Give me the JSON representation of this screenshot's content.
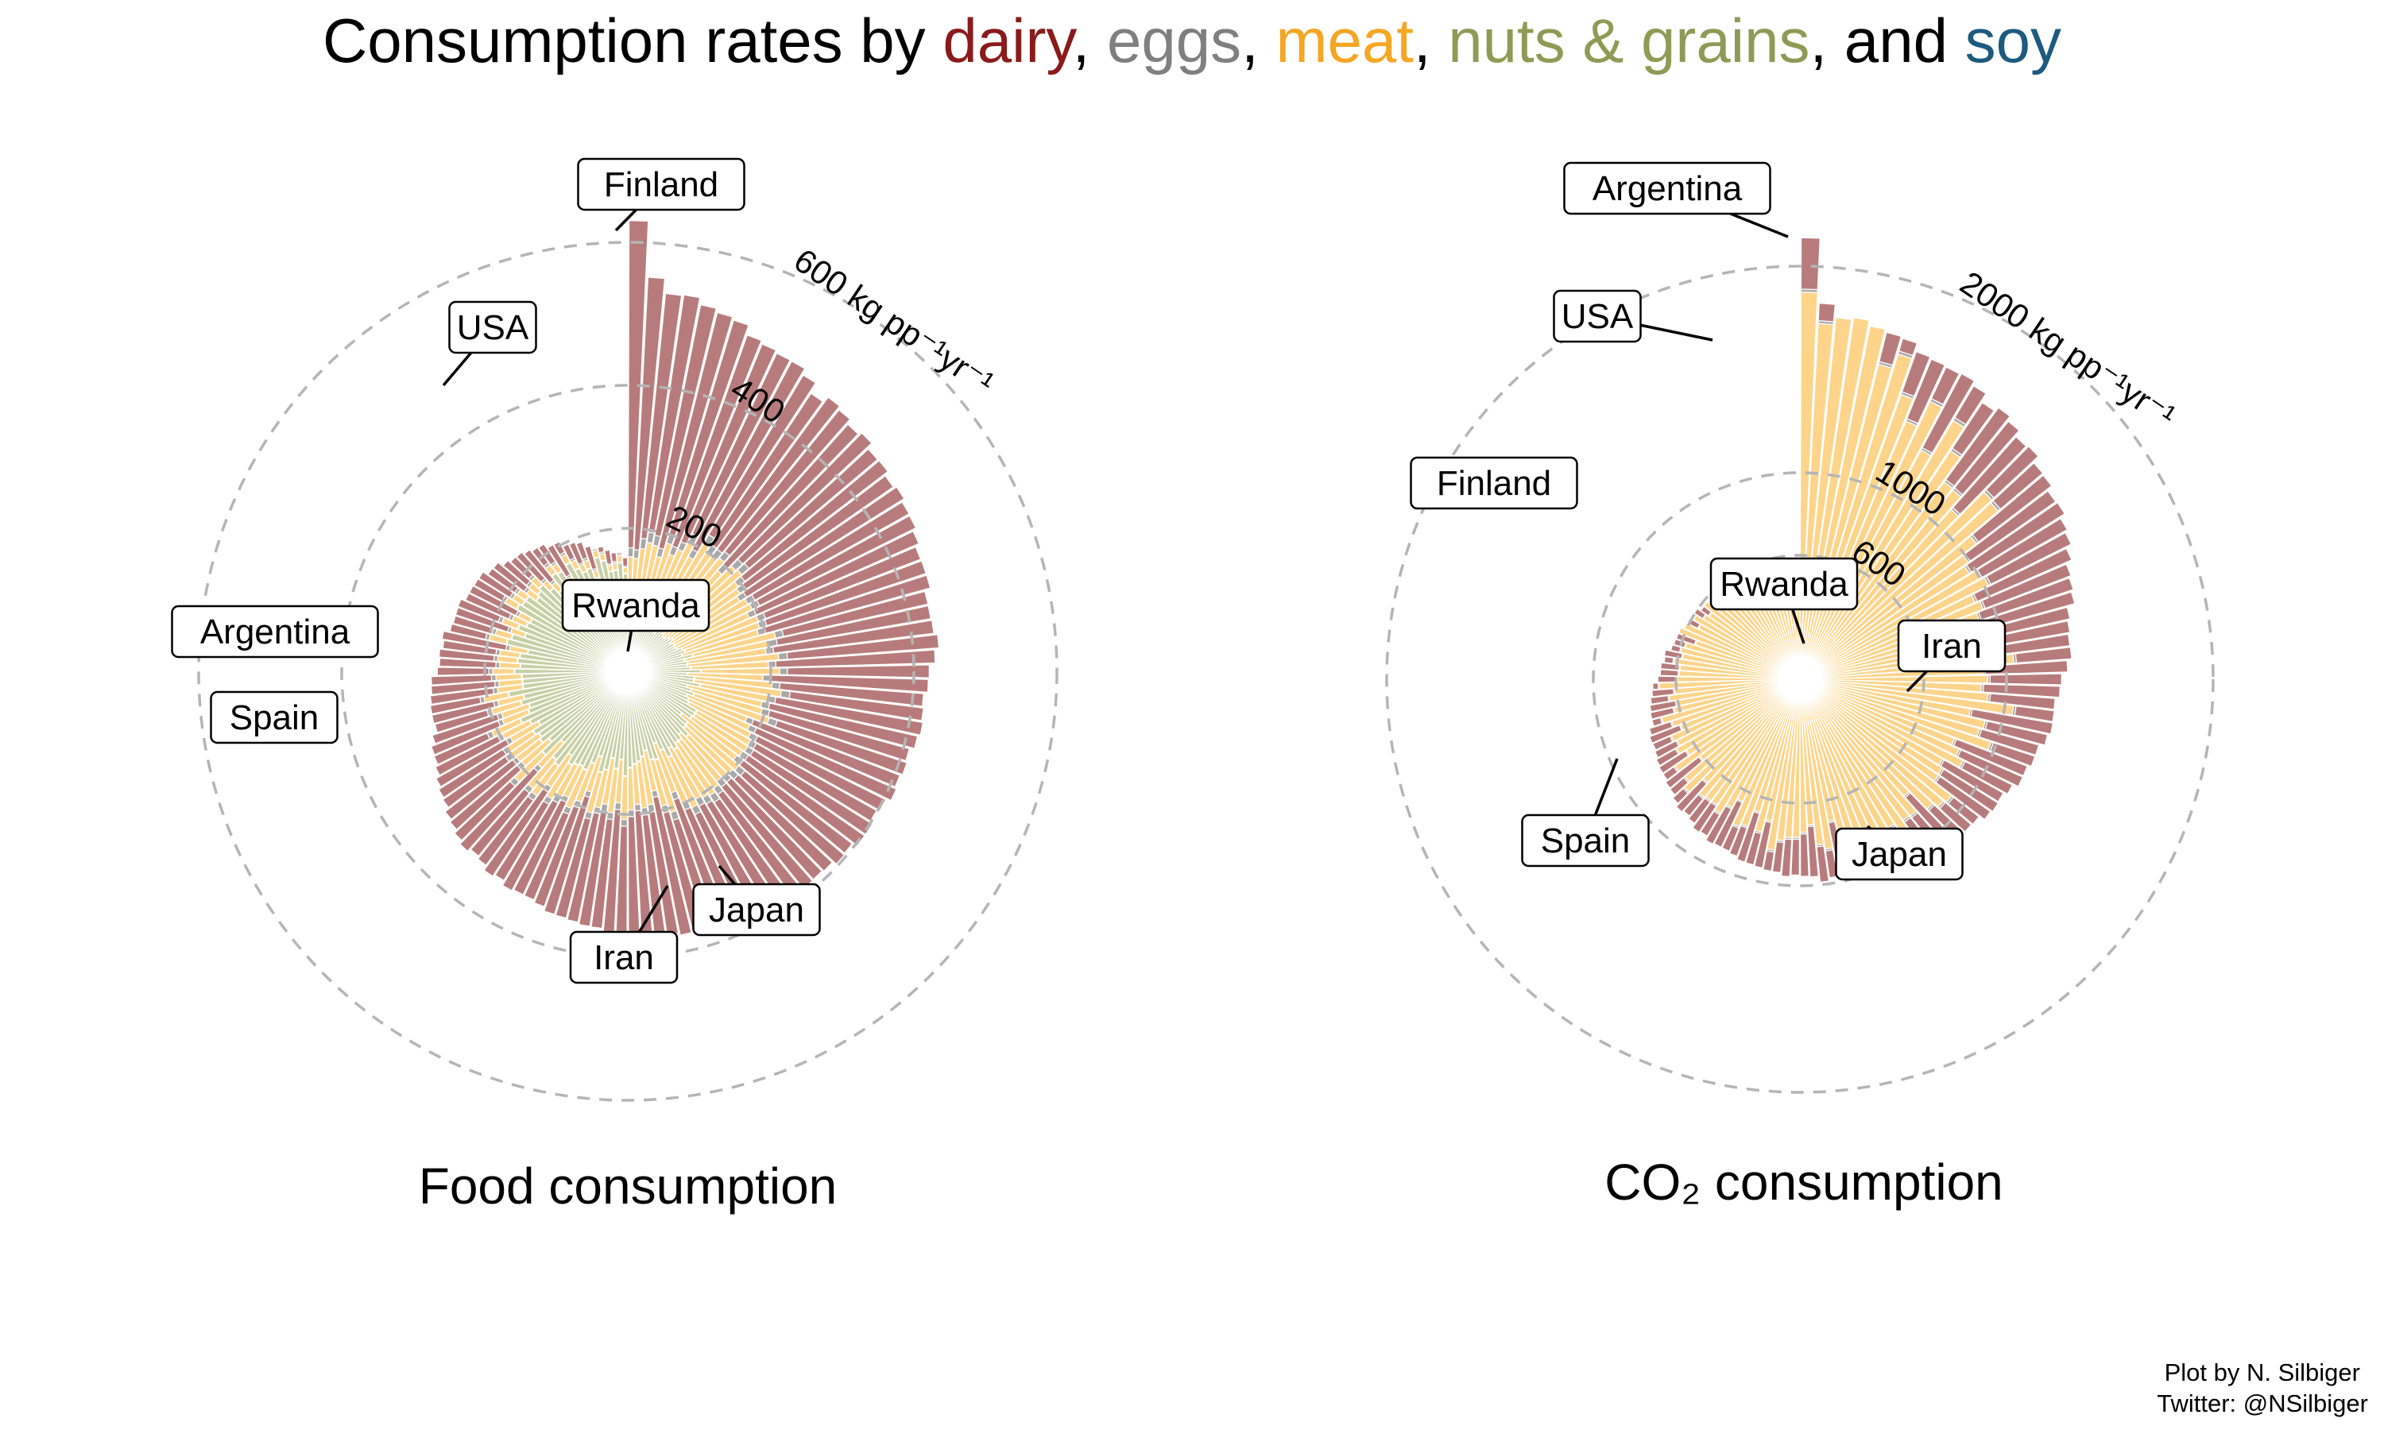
{
  "title": {
    "prefix": "Consumption rates by ",
    "dairy": "dairy",
    "sep1": ", ",
    "eggs": "eggs",
    "sep2": ", ",
    "meat": "meat",
    "sep3": ", ",
    "nuts": "nuts & grains",
    "sep4": ", and ",
    "soy": "soy"
  },
  "colors": {
    "dairy_title": "#8b1a1a",
    "eggs_title": "#7f7f7f",
    "meat_title": "#f5a623",
    "nuts_title": "#8f9a55",
    "soy_title": "#1c5a80",
    "dairy_bar": "#b87b7b",
    "eggs_bar": "#a9a9a9",
    "meat_bar": "#fdd48a",
    "nuts_bar": "#c7cfa5",
    "soy_bar": "#a4bccb",
    "ring": "#b5b5b5"
  },
  "credit": {
    "line1": "Plot by N. Silbiger",
    "line2": "Twitter: @NSilbiger"
  },
  "chart_data": [
    {
      "type": "bar",
      "subtype": "circular-stacked",
      "title": "Food consumption",
      "units": "kg pp⁻¹ yr⁻¹",
      "stack_order": [
        "nuts & grains",
        "soy",
        "meat",
        "eggs",
        "dairy"
      ],
      "rings": [
        {
          "value": 200,
          "label": "200"
        },
        {
          "value": 400,
          "label": "400"
        },
        {
          "value": 600,
          "label": "600 kg pp⁻¹yr⁻¹"
        }
      ],
      "ylim": [
        0,
        600
      ],
      "n_countries": 130,
      "labels": [
        {
          "country": "Finland",
          "rank": 0
        },
        {
          "country": "USA",
          "rank": 12
        },
        {
          "country": "Argentina",
          "rank": 30
        },
        {
          "country": "Spain",
          "rank": 37
        },
        {
          "country": "Iran",
          "rank": 82
        },
        {
          "country": "Japan",
          "rank": 90
        },
        {
          "country": "Rwanda",
          "rank": 129
        }
      ],
      "series_profile": {
        "description": "Countries sorted by total descending, clockwise from top",
        "total_kg": [
          [
            0,
            640
          ],
          [
            1,
            545
          ],
          [
            12,
            470
          ],
          [
            30,
            430
          ],
          [
            37,
            410
          ],
          [
            60,
            380
          ],
          [
            82,
            330
          ],
          [
            90,
            285
          ],
          [
            110,
            240
          ],
          [
            129,
            160
          ]
        ],
        "nuts_grains_kg": [
          [
            0,
            60
          ],
          [
            40,
            100
          ],
          [
            80,
            150
          ],
          [
            110,
            160
          ],
          [
            129,
            150
          ]
        ],
        "soy_kg": [
          [
            0,
            1
          ],
          [
            129,
            1
          ]
        ],
        "meat_kg": [
          [
            0,
            95
          ],
          [
            12,
            130
          ],
          [
            30,
            120
          ],
          [
            60,
            65
          ],
          [
            90,
            40
          ],
          [
            110,
            15
          ],
          [
            129,
            8
          ]
        ],
        "eggs_kg": [
          [
            0,
            13
          ],
          [
            60,
            10
          ],
          [
            129,
            2
          ]
        ]
      }
    },
    {
      "type": "bar",
      "subtype": "circular-stacked",
      "title": "CO₂ consumption",
      "units": "kg pp⁻¹ yr⁻¹",
      "stack_order": [
        "nuts & grains",
        "soy",
        "meat",
        "eggs",
        "dairy"
      ],
      "rings": [
        {
          "value": 600,
          "label": "600"
        },
        {
          "value": 1000,
          "label": "1000"
        },
        {
          "value": 2000,
          "label": "2000 kg pp⁻¹yr⁻¹"
        }
      ],
      "ylim": [
        0,
        2000
      ],
      "n_countries": 130,
      "labels": [
        {
          "country": "Argentina",
          "rank": 0
        },
        {
          "country": "USA",
          "rank": 10
        },
        {
          "country": "Finland",
          "rank": 20
        },
        {
          "country": "Spain",
          "rank": 50
        },
        {
          "country": "Japan",
          "rank": 75
        },
        {
          "country": "Iran",
          "rank": 105
        },
        {
          "country": "Rwanda",
          "rank": 129
        }
      ],
      "series_profile": {
        "description": "Countries sorted by total descending, clockwise from top",
        "total_kg": [
          [
            0,
            2170
          ],
          [
            1,
            1800
          ],
          [
            10,
            1650
          ],
          [
            20,
            1500
          ],
          [
            30,
            1300
          ],
          [
            50,
            1050
          ],
          [
            75,
            900
          ],
          [
            105,
            620
          ],
          [
            129,
            470
          ]
        ],
        "nuts_grains_kg": [
          [
            0,
            10
          ],
          [
            129,
            25
          ]
        ],
        "soy_kg": [
          [
            0,
            1
          ],
          [
            129,
            1
          ]
        ],
        "meat_kg": [
          [
            0,
            1920
          ],
          [
            10,
            1340
          ],
          [
            20,
            1060
          ],
          [
            30,
            960
          ],
          [
            50,
            830
          ],
          [
            75,
            700
          ],
          [
            105,
            560
          ],
          [
            129,
            430
          ]
        ],
        "eggs_kg": [
          [
            0,
            15
          ],
          [
            129,
            3
          ]
        ]
      }
    }
  ]
}
